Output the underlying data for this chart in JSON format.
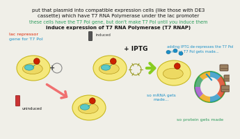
{
  "bg_color": "#f0efe8",
  "title_line1": "put that plasmid into compatible expression cells (like those with DE3",
  "title_line2": "cassette) which have T7 RNA Polymerase under the lac promoter",
  "subtitle": "these cells have the T7 Pol gene, but don't make T7 Pol until you induce them",
  "bold_line": "induce expression of T7 RNA Polymerase (T7 RNAP)",
  "label_lac_repressor": "lac repressor",
  "label_gene": "gene for T7 Pol",
  "label_induced": "induced",
  "label_iptg": "+ IPTG",
  "label_uninduced": "uninduced",
  "label_adding": "adding IPTG de-represses the T7 Pol",
  "label_adding2": "gene, so T7 Pol gets made...",
  "label_mrna": "so mRNA gets\nmade...",
  "label_protein": "so protein gets made",
  "color_title": "#111111",
  "color_subtitle": "#2a9a5a",
  "color_bold": "#111111",
  "color_lac": "#dd2200",
  "color_gene": "#1a8fc7",
  "color_induced": "#333333",
  "color_iptg": "#111111",
  "color_uninduced": "#111111",
  "color_adding": "#1a8fc7",
  "color_mrna": "#1a8fc7",
  "color_protein": "#2a9a5a",
  "cell_fill": "#f5e87c",
  "cell_edge": "#c8b820",
  "nucleoid_fill": "#edd860",
  "nucleoid_edge": "#b09010",
  "repressor_fill": "#5ac8c8",
  "repressor_edge": "#2a9898",
  "red_dot_fill": "#cc2200",
  "plasmid_edge": "#888888",
  "arrow_uninduced_color": "#f07070",
  "arrow_induced_color": "#88cc20",
  "iptg_color": "#999922"
}
